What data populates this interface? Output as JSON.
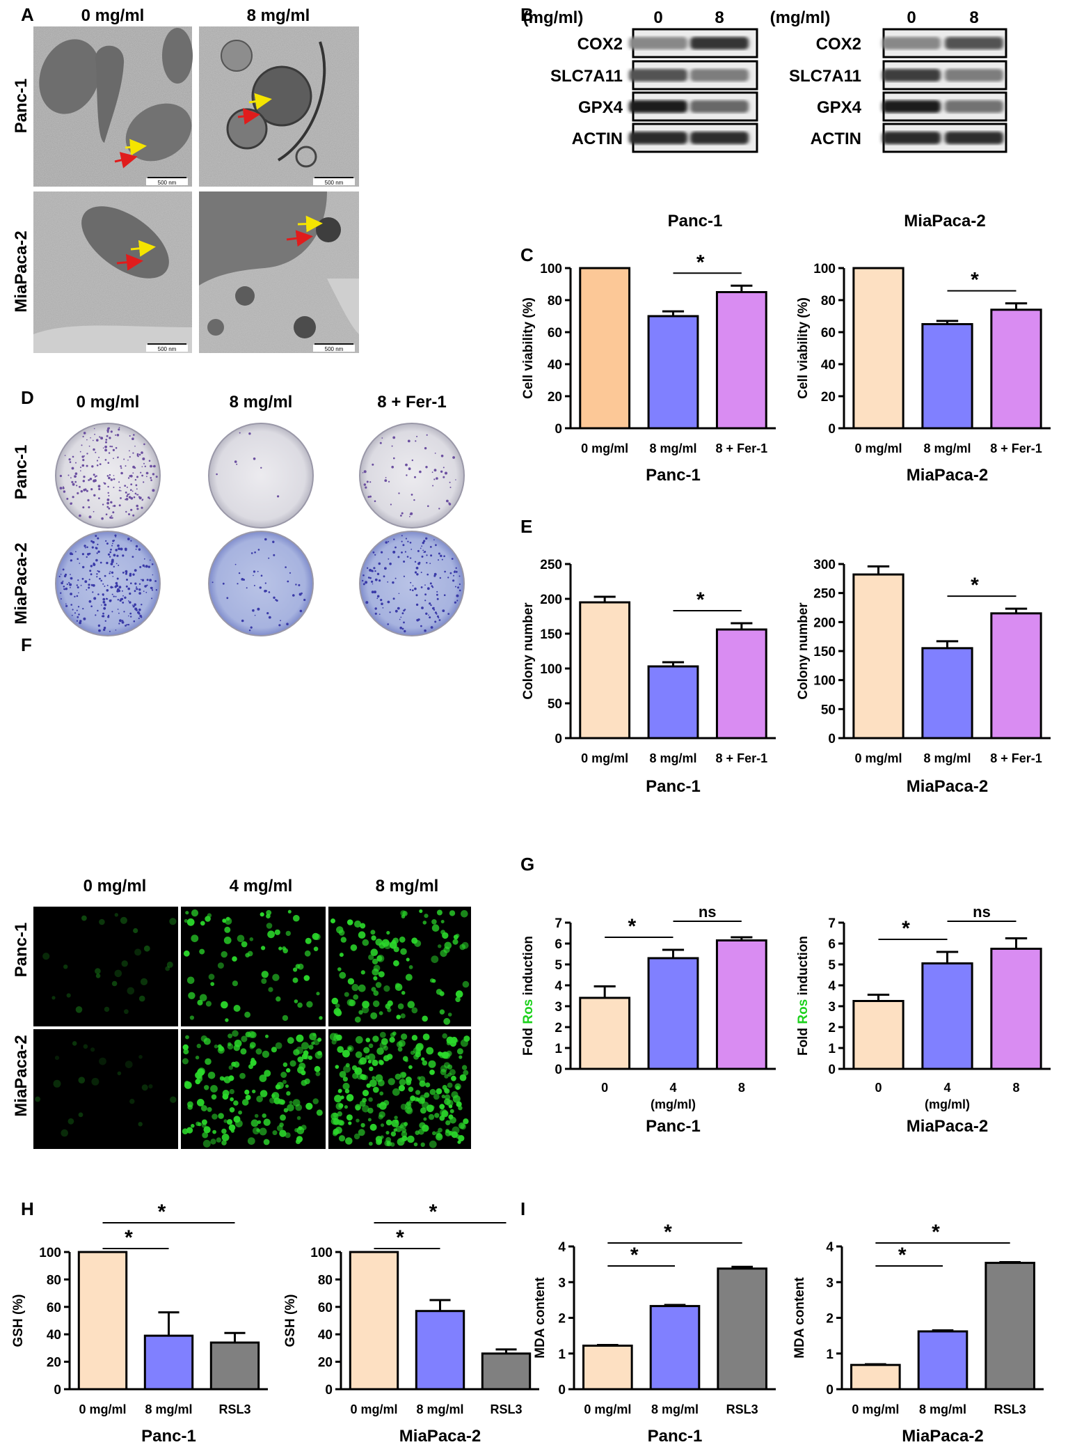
{
  "panels": {
    "A": {
      "letter": "A",
      "col_labels": [
        "0 mg/ml",
        "8 mg/ml"
      ],
      "row_labels": [
        "Panc-1",
        "MiaPaca-2"
      ],
      "scale_bar": "500 nm",
      "arrow_colors": {
        "yellow": "#f5e400",
        "red": "#e01c1c"
      }
    },
    "B": {
      "letter": "B",
      "blots": [
        {
          "cell_line": "Panc-1",
          "unit": "(mg/ml)",
          "lanes": [
            "0",
            "8"
          ],
          "proteins": [
            "COX2",
            "SLC7A11",
            "GPX4",
            "ACTIN"
          ],
          "intensity": [
            [
              0.45,
              0.85
            ],
            [
              0.7,
              0.5
            ],
            [
              0.95,
              0.6
            ],
            [
              0.9,
              0.88
            ]
          ]
        },
        {
          "cell_line": "MiaPaca-2",
          "unit": "(mg/ml)",
          "lanes": [
            "0",
            "8"
          ],
          "proteins": [
            "COX2",
            "SLC7A11",
            "GPX4",
            "ACTIN"
          ],
          "intensity": [
            [
              0.45,
              0.7
            ],
            [
              0.8,
              0.5
            ],
            [
              0.95,
              0.55
            ],
            [
              0.9,
              0.88
            ]
          ]
        }
      ]
    },
    "D": {
      "letter": "D",
      "col_labels": [
        "0 mg/ml",
        "8 mg/ml",
        "8 + Fer-1"
      ],
      "row_labels": [
        "Panc-1",
        "MiaPaca-2"
      ]
    },
    "F": {
      "letter": "F",
      "col_labels": [
        "0 mg/ml",
        "4 mg/ml",
        "8 mg/ml"
      ],
      "row_labels": [
        "Panc-1",
        "MiaPaca-2"
      ],
      "fluorescence_color": "#2bd92b"
    }
  },
  "chart_data": [
    {
      "panel": "C",
      "type": "bar",
      "categories": [
        "0 mg/ml",
        "8 mg/ml",
        "8 + Fer-1"
      ],
      "values": [
        100,
        70,
        85
      ],
      "errors": [
        0,
        3,
        4
      ],
      "ylabel": "Cell viability (%)",
      "xlabel": "Panc-1",
      "ylim": [
        0,
        100
      ],
      "yticks": [
        0,
        20,
        40,
        60,
        80,
        100
      ],
      "colors": [
        "#fcc897",
        "#8080ff",
        "#d98cf2"
      ],
      "significance": [
        {
          "from": 1,
          "to": 2,
          "label": "*"
        }
      ]
    },
    {
      "panel": "",
      "type": "bar",
      "categories": [
        "0 mg/ml",
        "8 mg/ml",
        "8 + Fer-1"
      ],
      "values": [
        100,
        65,
        74
      ],
      "errors": [
        0,
        2,
        4
      ],
      "ylabel": "Cell viability (%)",
      "xlabel": "MiaPaca-2",
      "ylim": [
        0,
        100
      ],
      "yticks": [
        0,
        20,
        40,
        60,
        80,
        100
      ],
      "colors": [
        "#fde0c2",
        "#8080ff",
        "#d98cf2"
      ],
      "significance": [
        {
          "from": 1,
          "to": 2,
          "label": "*"
        }
      ]
    },
    {
      "panel": "E",
      "type": "bar",
      "categories": [
        "0 mg/ml",
        "8 mg/ml",
        "8 + Fer-1"
      ],
      "values": [
        195,
        103,
        156
      ],
      "errors": [
        8,
        6,
        9
      ],
      "ylabel": "Colony number",
      "xlabel": "Panc-1",
      "ylim": [
        0,
        250
      ],
      "yticks": [
        0,
        50,
        100,
        150,
        200,
        250
      ],
      "colors": [
        "#fde0c2",
        "#8080ff",
        "#d98cf2"
      ],
      "significance": [
        {
          "from": 1,
          "to": 2,
          "label": "*"
        }
      ]
    },
    {
      "panel": "",
      "type": "bar",
      "categories": [
        "0 mg/ml",
        "8 mg/ml",
        "8 + Fer-1"
      ],
      "values": [
        282,
        155,
        215
      ],
      "errors": [
        14,
        12,
        8
      ],
      "ylabel": "Colony number",
      "xlabel": "MiaPaca-2",
      "ylim": [
        0,
        300
      ],
      "yticks": [
        0,
        50,
        100,
        150,
        200,
        250,
        300
      ],
      "colors": [
        "#fde0c2",
        "#8080ff",
        "#d98cf2"
      ],
      "significance": [
        {
          "from": 1,
          "to": 2,
          "label": "*"
        }
      ]
    },
    {
      "panel": "G",
      "type": "bar",
      "categories": [
        "0",
        "4",
        "8"
      ],
      "values": [
        3.4,
        5.3,
        6.15
      ],
      "errors": [
        0.55,
        0.4,
        0.15
      ],
      "ylabel_parts": [
        "Fold ",
        "Ros",
        " induction"
      ],
      "ylabel_colors": [
        "#000000",
        "#1dd11d",
        "#000000"
      ],
      "unit_label": "(mg/ml)",
      "xlabel": "Panc-1",
      "ylim": [
        0,
        7
      ],
      "yticks": [
        0,
        1,
        2,
        3,
        4,
        5,
        6,
        7
      ],
      "colors": [
        "#fde0c2",
        "#8080ff",
        "#d98cf2"
      ],
      "significance": [
        {
          "from": 0,
          "to": 1,
          "label": "*"
        },
        {
          "from": 1,
          "to": 2,
          "label": "ns"
        }
      ]
    },
    {
      "panel": "",
      "type": "bar",
      "categories": [
        "0",
        "4",
        "8"
      ],
      "values": [
        3.25,
        5.05,
        5.75
      ],
      "errors": [
        0.3,
        0.55,
        0.5
      ],
      "ylabel_parts": [
        "Fold ",
        "Ros",
        " induction"
      ],
      "ylabel_colors": [
        "#000000",
        "#1dd11d",
        "#000000"
      ],
      "unit_label": "(mg/ml)",
      "xlabel": "MiaPaca-2",
      "ylim": [
        0,
        7
      ],
      "yticks": [
        0,
        1,
        2,
        3,
        4,
        5,
        6,
        7
      ],
      "colors": [
        "#fde0c2",
        "#8080ff",
        "#d98cf2"
      ],
      "significance": [
        {
          "from": 0,
          "to": 1,
          "label": "*"
        },
        {
          "from": 1,
          "to": 2,
          "label": "ns"
        }
      ]
    },
    {
      "panel": "H",
      "type": "bar",
      "categories": [
        "0 mg/ml",
        "8 mg/ml",
        "RSL3"
      ],
      "values": [
        100,
        39,
        34
      ],
      "errors": [
        0,
        17,
        7
      ],
      "ylabel": "GSH (%)",
      "xlabel": "Panc-1",
      "ylim": [
        0,
        100
      ],
      "yticks": [
        0,
        20,
        40,
        60,
        80,
        100
      ],
      "colors": [
        "#fde0c2",
        "#8080ff",
        "#808080"
      ],
      "significance": [
        {
          "from": 0,
          "to": 1,
          "label": "*"
        },
        {
          "from": 0,
          "to": 2,
          "label": "*"
        }
      ]
    },
    {
      "panel": "",
      "type": "bar",
      "categories": [
        "0 mg/ml",
        "8 mg/ml",
        "RSL3"
      ],
      "values": [
        100,
        57,
        26
      ],
      "errors": [
        0,
        8,
        3
      ],
      "ylabel": "GSH (%)",
      "xlabel": "MiaPaca-2",
      "ylim": [
        0,
        100
      ],
      "yticks": [
        0,
        20,
        40,
        60,
        80,
        100
      ],
      "colors": [
        "#fde0c2",
        "#8080ff",
        "#808080"
      ],
      "significance": [
        {
          "from": 0,
          "to": 1,
          "label": "*"
        },
        {
          "from": 0,
          "to": 2,
          "label": "*"
        }
      ]
    },
    {
      "panel": "I",
      "type": "bar",
      "categories": [
        "0 mg/ml",
        "8 mg/ml",
        "RSL3"
      ],
      "values": [
        1.22,
        2.33,
        3.38
      ],
      "errors": [
        0.02,
        0.03,
        0.05
      ],
      "ylabel": "MDA content",
      "xlabel": "Panc-1",
      "ylim": [
        0,
        4
      ],
      "yticks": [
        0,
        1,
        2,
        3,
        4
      ],
      "colors": [
        "#fde0c2",
        "#8080ff",
        "#808080"
      ],
      "significance": [
        {
          "from": 0,
          "to": 1,
          "label": "*"
        },
        {
          "from": 0,
          "to": 2,
          "label": "*"
        }
      ]
    },
    {
      "panel": "",
      "type": "bar",
      "categories": [
        "0 mg/ml",
        "8 mg/ml",
        "RSL3"
      ],
      "values": [
        0.68,
        1.62,
        3.54
      ],
      "errors": [
        0.02,
        0.03,
        0.02
      ],
      "ylabel": "MDA content",
      "xlabel": "MiaPaca-2",
      "ylim": [
        0,
        4
      ],
      "yticks": [
        0,
        1,
        2,
        3,
        4
      ],
      "colors": [
        "#fde0c2",
        "#8080ff",
        "#808080"
      ],
      "significance": [
        {
          "from": 0,
          "to": 1,
          "label": "*"
        },
        {
          "from": 0,
          "to": 2,
          "label": "*"
        }
      ]
    }
  ]
}
